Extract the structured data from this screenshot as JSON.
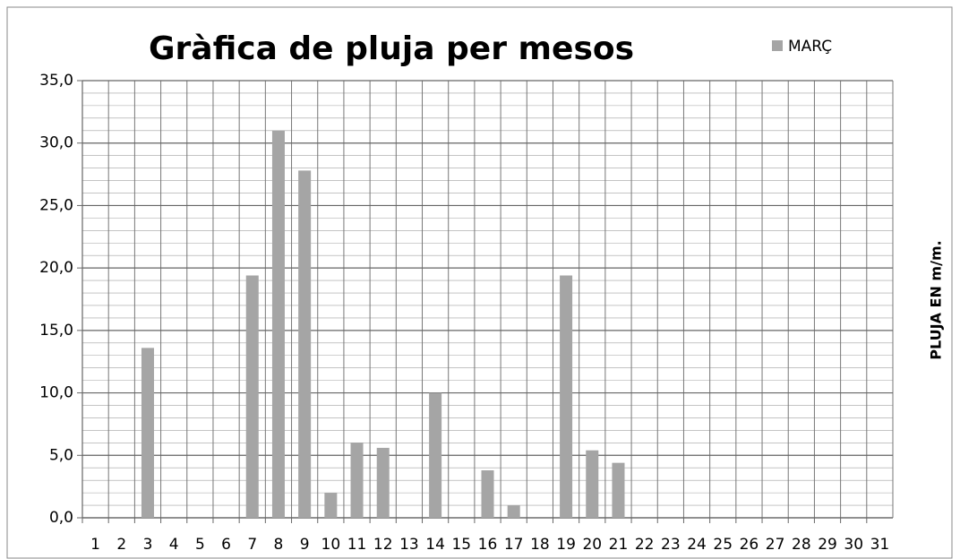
{
  "chart_data": {
    "type": "bar",
    "title": "Gràfica de pluja per mesos",
    "y_label": "PLUJA EN m/m.",
    "categories": [
      "1",
      "2",
      "3",
      "4",
      "5",
      "6",
      "7",
      "8",
      "9",
      "10",
      "11",
      "12",
      "13",
      "14",
      "15",
      "16",
      "17",
      "18",
      "19",
      "20",
      "21",
      "22",
      "23",
      "24",
      "25",
      "26",
      "27",
      "28",
      "29",
      "30",
      "31"
    ],
    "series": [
      {
        "name": "MARÇ",
        "color": "#a5a5a5",
        "values": [
          0,
          0,
          13.6,
          0,
          0,
          0,
          19.4,
          31.0,
          27.8,
          2.0,
          6.0,
          5.6,
          0,
          10.0,
          0,
          3.8,
          1.0,
          0,
          19.4,
          5.4,
          4.4,
          0,
          0,
          0,
          0,
          0,
          0,
          0,
          0,
          0,
          0
        ]
      }
    ],
    "ylim": [
      0,
      35
    ],
    "yticks": [
      {
        "value": 0,
        "label": "0,0"
      },
      {
        "value": 5,
        "label": "5,0"
      },
      {
        "value": 10,
        "label": "10,0"
      },
      {
        "value": 15,
        "label": "15,0"
      },
      {
        "value": 20,
        "label": "20,0"
      },
      {
        "value": 25,
        "label": "25,0"
      },
      {
        "value": 30,
        "label": "30,0"
      },
      {
        "value": 35,
        "label": "35,0"
      }
    ],
    "minor_ystep": 1,
    "grid": true,
    "legend": "top-right"
  }
}
